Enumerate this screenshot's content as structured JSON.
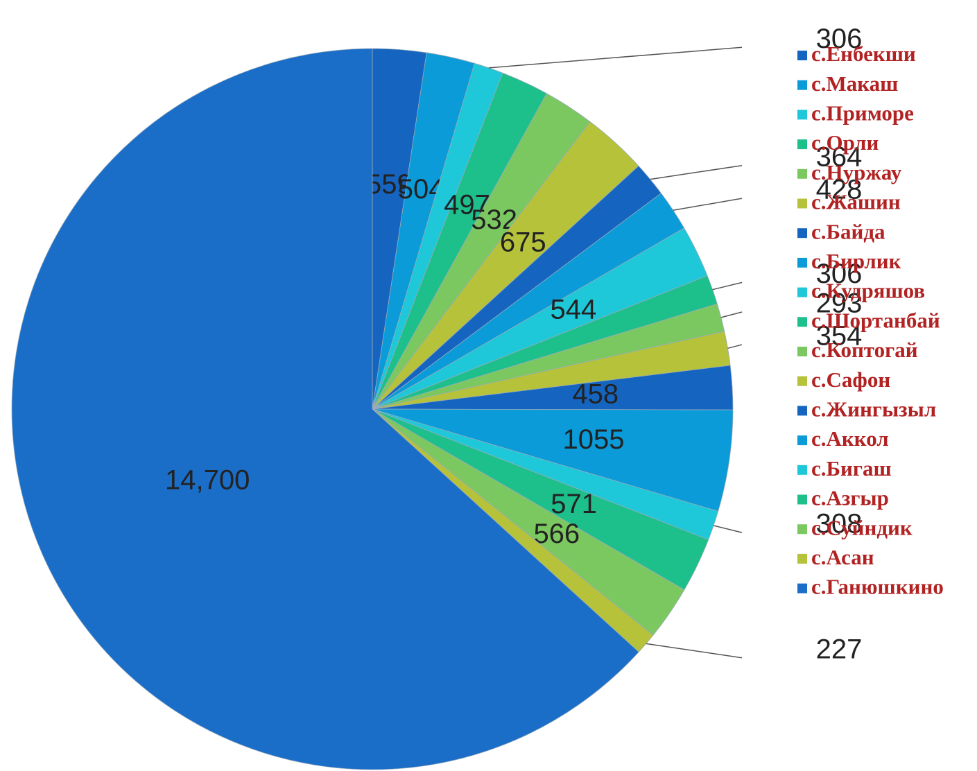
{
  "chart_data": {
    "type": "pie",
    "categories": [
      "с.Енбекши",
      "с.Макаш",
      "с.Приморе",
      "с.Орли",
      "с.Нуржау",
      "с.Жашин",
      "с.Байда",
      "с.Бирлик",
      "с.Кудряшов",
      "с.Шортанбай",
      "с.Коптогай",
      "с.Сафон",
      "с.Жингызыл",
      "с.Аккол",
      "с.Бигаш",
      "с.Азгыр",
      "с.Суйндик",
      "с.Асан",
      "с.Ганюшкино"
    ],
    "values": [
      559,
      504,
      306,
      497,
      532,
      675,
      364,
      428,
      544,
      306,
      293,
      354,
      458,
      1055,
      308,
      571,
      566,
      227,
      14700
    ],
    "value_labels": [
      "559",
      "504",
      "306",
      "497",
      "532",
      "675",
      "364",
      "428",
      "544",
      "306",
      "293",
      "354",
      "458",
      "1055",
      "308",
      "571",
      "566",
      "227",
      "14,700"
    ],
    "colors": [
      "#1565c0",
      "#0a9bd8",
      "#1ec8d8",
      "#1dbf8a",
      "#7cc860",
      "#b5c23a",
      "#1565c0",
      "#0a9bd8",
      "#1ec8d8",
      "#1dbf8a",
      "#7cc860",
      "#b5c23a",
      "#1565c0",
      "#0a9bd8",
      "#1ec8d8",
      "#1dbf8a",
      "#7cc860",
      "#b5c23a",
      "#1a6ec8"
    ],
    "legend": "right"
  }
}
